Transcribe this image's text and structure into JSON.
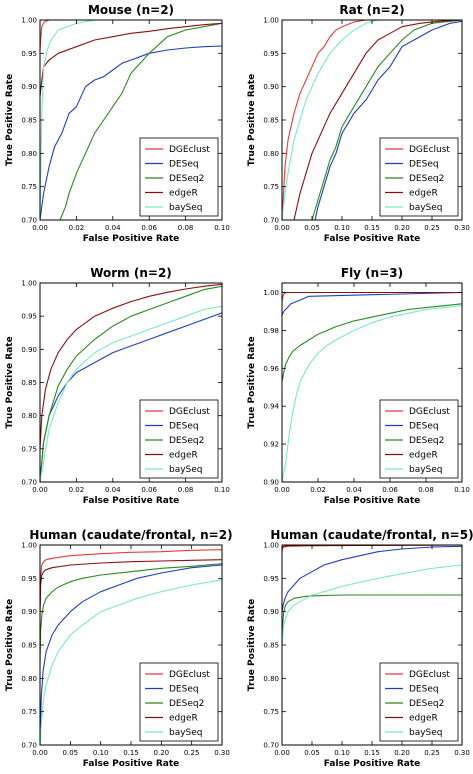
{
  "colors": {
    "DGEclust": "#e83b3b",
    "DESeq": "#1f3fbf",
    "DESeq2": "#2a8a1f",
    "edgeR": "#8b1010",
    "baySeq": "#7ee8c8"
  },
  "chart_data": [
    {
      "type": "line",
      "title": "Mouse (n=2)",
      "xlabel": "False Positive Rate",
      "ylabel": "True Positive Rate",
      "xlim": [
        0,
        0.1
      ],
      "ylim": [
        0.7,
        1.0
      ],
      "xticks": [
        "0.00",
        "0.02",
        "0.04",
        "0.06",
        "0.08",
        "0.10"
      ],
      "yticks": [
        "0.70",
        "0.75",
        "0.80",
        "0.85",
        "0.90",
        "0.95",
        "1.00"
      ],
      "legend": "bottom-right",
      "series": [
        {
          "name": "DGEclust",
          "x": [
            0,
            0.0005,
            0.001,
            0.002,
            0.003,
            0.005,
            0.024
          ],
          "y": [
            0.955,
            0.975,
            0.99,
            0.996,
            0.998,
            1.0,
            1.0
          ]
        },
        {
          "name": "DESeq",
          "x": [
            0,
            0.002,
            0.005,
            0.008,
            0.012,
            0.016,
            0.02,
            0.025,
            0.03,
            0.035,
            0.04,
            0.045,
            0.05,
            0.055,
            0.06,
            0.07,
            0.08,
            0.09,
            0.1
          ],
          "y": [
            0.7,
            0.74,
            0.78,
            0.81,
            0.83,
            0.86,
            0.87,
            0.9,
            0.91,
            0.915,
            0.925,
            0.935,
            0.94,
            0.945,
            0.95,
            0.955,
            0.958,
            0.96,
            0.961
          ]
        },
        {
          "name": "DESeq2",
          "x": [
            0.011,
            0.014,
            0.016,
            0.02,
            0.025,
            0.03,
            0.035,
            0.04,
            0.045,
            0.05,
            0.06,
            0.07,
            0.08,
            0.09,
            0.1
          ],
          "y": [
            0.7,
            0.72,
            0.74,
            0.77,
            0.8,
            0.83,
            0.85,
            0.87,
            0.89,
            0.92,
            0.95,
            0.975,
            0.985,
            0.99,
            0.995
          ]
        },
        {
          "name": "edgeR",
          "x": [
            0,
            0.001,
            0.002,
            0.005,
            0.01,
            0.02,
            0.03,
            0.04,
            0.05,
            0.06,
            0.07,
            0.08,
            0.09,
            0.1
          ],
          "y": [
            0.885,
            0.91,
            0.93,
            0.94,
            0.95,
            0.96,
            0.97,
            0.975,
            0.98,
            0.983,
            0.987,
            0.99,
            0.993,
            0.995
          ]
        },
        {
          "name": "baySeq",
          "x": [
            0,
            0.001,
            0.002,
            0.004,
            0.006,
            0.01,
            0.015,
            0.02,
            0.03,
            0.05,
            0.1
          ],
          "y": [
            0.7,
            0.86,
            0.93,
            0.955,
            0.97,
            0.985,
            0.99,
            0.995,
            1.0,
            1.0,
            1.0
          ]
        }
      ]
    },
    {
      "type": "line",
      "title": "Rat (n=2)",
      "xlabel": "False Positive Rate",
      "ylabel": "True Positive Rate",
      "xlim": [
        0,
        0.3
      ],
      "ylim": [
        0.7,
        1.0
      ],
      "xticks": [
        "0.00",
        "0.05",
        "0.10",
        "0.15",
        "0.20",
        "0.25",
        "0.30"
      ],
      "yticks": [
        "0.70",
        "0.75",
        "0.80",
        "0.85",
        "0.90",
        "0.95",
        "1.00"
      ],
      "legend": "bottom-right",
      "series": [
        {
          "name": "DGEclust",
          "x": [
            0,
            0.005,
            0.01,
            0.02,
            0.03,
            0.04,
            0.05,
            0.06,
            0.07,
            0.08,
            0.09,
            0.1,
            0.12,
            0.14,
            0.19
          ],
          "y": [
            0.7,
            0.78,
            0.82,
            0.86,
            0.89,
            0.91,
            0.93,
            0.95,
            0.96,
            0.975,
            0.985,
            0.99,
            0.997,
            1.0,
            1.0
          ]
        },
        {
          "name": "DESeq",
          "x": [
            0.055,
            0.06,
            0.07,
            0.08,
            0.09,
            0.1,
            0.12,
            0.14,
            0.16,
            0.18,
            0.2,
            0.22,
            0.25,
            0.28,
            0.3
          ],
          "y": [
            0.7,
            0.72,
            0.75,
            0.78,
            0.8,
            0.83,
            0.86,
            0.88,
            0.91,
            0.93,
            0.96,
            0.97,
            0.985,
            0.995,
            0.998
          ]
        },
        {
          "name": "DESeq2",
          "x": [
            0.05,
            0.06,
            0.07,
            0.08,
            0.09,
            0.1,
            0.12,
            0.14,
            0.16,
            0.18,
            0.2,
            0.22,
            0.25,
            0.3
          ],
          "y": [
            0.7,
            0.73,
            0.76,
            0.79,
            0.81,
            0.84,
            0.87,
            0.9,
            0.93,
            0.95,
            0.97,
            0.985,
            0.995,
            1.0
          ]
        },
        {
          "name": "edgeR",
          "x": [
            0.02,
            0.03,
            0.04,
            0.05,
            0.06,
            0.08,
            0.1,
            0.12,
            0.14,
            0.16,
            0.18,
            0.2,
            0.23,
            0.26,
            0.3
          ],
          "y": [
            0.7,
            0.74,
            0.77,
            0.8,
            0.82,
            0.86,
            0.89,
            0.92,
            0.95,
            0.97,
            0.98,
            0.99,
            0.995,
            0.998,
            1.0
          ]
        },
        {
          "name": "baySeq",
          "x": [
            0,
            0.005,
            0.01,
            0.02,
            0.03,
            0.04,
            0.05,
            0.06,
            0.08,
            0.1,
            0.12,
            0.14,
            0.16,
            0.3
          ],
          "y": [
            0.7,
            0.74,
            0.77,
            0.82,
            0.85,
            0.88,
            0.9,
            0.92,
            0.95,
            0.97,
            0.985,
            0.995,
            1.0,
            1.0
          ]
        }
      ]
    },
    {
      "type": "line",
      "title": "Worm (n=2)",
      "xlabel": "False Positive Rate",
      "ylabel": "True Positive Rate",
      "xlim": [
        0,
        0.1
      ],
      "ylim": [
        0.7,
        1.0
      ],
      "xticks": [
        "0.00",
        "0.02",
        "0.04",
        "0.06",
        "0.08",
        "0.10"
      ],
      "yticks": [
        "0.70",
        "0.75",
        "0.80",
        "0.85",
        "0.90",
        "0.95",
        "1.00"
      ],
      "legend": "bottom-right",
      "series": [
        {
          "name": "DGEclust",
          "x": [
            0,
            0.1
          ],
          "y": [
            1.0,
            1.0
          ]
        },
        {
          "name": "DESeq",
          "x": [
            0,
            0.002,
            0.005,
            0.01,
            0.015,
            0.02,
            0.03,
            0.04,
            0.05,
            0.06,
            0.07,
            0.08,
            0.09,
            0.1
          ],
          "y": [
            0.7,
            0.76,
            0.8,
            0.83,
            0.85,
            0.865,
            0.88,
            0.895,
            0.905,
            0.915,
            0.925,
            0.935,
            0.945,
            0.955
          ]
        },
        {
          "name": "DESeq2",
          "x": [
            0,
            0.002,
            0.005,
            0.01,
            0.015,
            0.02,
            0.03,
            0.04,
            0.05,
            0.06,
            0.07,
            0.08,
            0.09,
            0.1
          ],
          "y": [
            0.7,
            0.76,
            0.8,
            0.845,
            0.87,
            0.89,
            0.915,
            0.935,
            0.95,
            0.96,
            0.97,
            0.98,
            0.99,
            0.995
          ]
        },
        {
          "name": "edgeR",
          "x": [
            0,
            0.001,
            0.003,
            0.006,
            0.01,
            0.015,
            0.02,
            0.03,
            0.04,
            0.05,
            0.06,
            0.07,
            0.08,
            0.09,
            0.1
          ],
          "y": [
            0.75,
            0.8,
            0.84,
            0.87,
            0.895,
            0.915,
            0.93,
            0.95,
            0.962,
            0.972,
            0.98,
            0.986,
            0.991,
            0.995,
            0.998
          ]
        },
        {
          "name": "baySeq",
          "x": [
            0,
            0.002,
            0.005,
            0.01,
            0.015,
            0.02,
            0.03,
            0.04,
            0.05,
            0.06,
            0.07,
            0.08,
            0.09,
            0.1
          ],
          "y": [
            0.7,
            0.73,
            0.78,
            0.82,
            0.85,
            0.87,
            0.895,
            0.91,
            0.92,
            0.93,
            0.94,
            0.95,
            0.96,
            0.965
          ]
        }
      ]
    },
    {
      "type": "line",
      "title": "Fly (n=3)",
      "xlabel": "False Positive Rate",
      "ylabel": "True Positive Rate",
      "xlim": [
        0,
        0.1
      ],
      "ylim": [
        0.9,
        1.005
      ],
      "xticks": [
        "0.00",
        "0.02",
        "0.04",
        "0.06",
        "0.08",
        "0.10"
      ],
      "yticks": [
        "0.90",
        "0.92",
        "0.94",
        "0.96",
        "0.98",
        "1.00"
      ],
      "legend": "bottom-right",
      "series": [
        {
          "name": "DGEclust",
          "x": [
            0,
            0.0005,
            0.001,
            0.002,
            0.004,
            0.1
          ],
          "y": [
            0.995,
            0.998,
            0.999,
            1.0,
            1.0,
            1.0
          ]
        },
        {
          "name": "DESeq",
          "x": [
            0,
            0.001,
            0.002,
            0.003,
            0.005,
            0.01,
            0.015,
            0.1
          ],
          "y": [
            0.988,
            0.99,
            0.991,
            0.992,
            0.994,
            0.996,
            0.998,
            1.0
          ]
        },
        {
          "name": "DESeq2",
          "x": [
            0,
            0.001,
            0.002,
            0.004,
            0.006,
            0.01,
            0.015,
            0.02,
            0.03,
            0.04,
            0.05,
            0.06,
            0.07,
            0.08,
            0.09,
            0.1
          ],
          "y": [
            0.953,
            0.958,
            0.962,
            0.966,
            0.969,
            0.972,
            0.975,
            0.978,
            0.982,
            0.985,
            0.987,
            0.989,
            0.991,
            0.992,
            0.993,
            0.994
          ]
        },
        {
          "name": "edgeR",
          "x": [
            0,
            0.1
          ],
          "y": [
            1.0,
            1.0
          ]
        },
        {
          "name": "baySeq",
          "x": [
            0,
            0.002,
            0.004,
            0.006,
            0.008,
            0.01,
            0.015,
            0.02,
            0.025,
            0.03,
            0.04,
            0.05,
            0.06,
            0.07,
            0.08,
            0.09,
            0.1
          ],
          "y": [
            0.9,
            0.91,
            0.925,
            0.937,
            0.946,
            0.953,
            0.962,
            0.968,
            0.972,
            0.975,
            0.98,
            0.984,
            0.987,
            0.989,
            0.991,
            0.992,
            0.993
          ]
        }
      ]
    },
    {
      "type": "line",
      "title": "Human (caudate/frontal, n=2)",
      "xlabel": "False Positive Rate",
      "ylabel": "True Positive Rate",
      "xlim": [
        0,
        0.3
      ],
      "ylim": [
        0.7,
        1.0
      ],
      "xticks": [
        "0.00",
        "0.05",
        "0.10",
        "0.15",
        "0.20",
        "0.25",
        "0.30"
      ],
      "yticks": [
        "0.70",
        "0.75",
        "0.80",
        "0.85",
        "0.90",
        "0.95",
        "1.00"
      ],
      "legend": "bottom-right",
      "series": [
        {
          "name": "DGEclust",
          "x": [
            0,
            0.001,
            0.003,
            0.006,
            0.01,
            0.02,
            0.05,
            0.1,
            0.15,
            0.2,
            0.25,
            0.3
          ],
          "y": [
            0.9,
            0.95,
            0.97,
            0.975,
            0.978,
            0.98,
            0.984,
            0.987,
            0.989,
            0.99,
            0.992,
            0.993
          ]
        },
        {
          "name": "DESeq",
          "x": [
            0,
            0.002,
            0.005,
            0.01,
            0.02,
            0.03,
            0.05,
            0.07,
            0.1,
            0.13,
            0.16,
            0.2,
            0.25,
            0.3
          ],
          "y": [
            0.7,
            0.77,
            0.81,
            0.84,
            0.865,
            0.88,
            0.9,
            0.915,
            0.93,
            0.94,
            0.95,
            0.958,
            0.966,
            0.97
          ]
        },
        {
          "name": "DESeq2",
          "x": [
            0,
            0.001,
            0.003,
            0.006,
            0.01,
            0.02,
            0.03,
            0.05,
            0.07,
            0.1,
            0.15,
            0.2,
            0.25,
            0.3
          ],
          "y": [
            0.82,
            0.87,
            0.895,
            0.91,
            0.92,
            0.93,
            0.937,
            0.945,
            0.95,
            0.955,
            0.96,
            0.965,
            0.968,
            0.972
          ]
        },
        {
          "name": "edgeR",
          "x": [
            0,
            0.001,
            0.003,
            0.006,
            0.01,
            0.02,
            0.05,
            0.1,
            0.15,
            0.2,
            0.25,
            0.3
          ],
          "y": [
            0.9,
            0.94,
            0.955,
            0.96,
            0.963,
            0.966,
            0.97,
            0.973,
            0.975,
            0.976,
            0.977,
            0.978
          ]
        },
        {
          "name": "baySeq",
          "x": [
            0,
            0.003,
            0.006,
            0.01,
            0.02,
            0.03,
            0.05,
            0.07,
            0.1,
            0.13,
            0.16,
            0.2,
            0.25,
            0.3
          ],
          "y": [
            0.7,
            0.74,
            0.77,
            0.79,
            0.82,
            0.84,
            0.865,
            0.88,
            0.9,
            0.91,
            0.92,
            0.93,
            0.94,
            0.948
          ]
        }
      ]
    },
    {
      "type": "line",
      "title": "Human (caudate/frontal, n=5)",
      "xlabel": "False Positive Rate",
      "ylabel": "True Positive Rate",
      "xlim": [
        0,
        0.3
      ],
      "ylim": [
        0.7,
        1.0
      ],
      "xticks": [
        "0.00",
        "0.05",
        "0.10",
        "0.15",
        "0.20",
        "0.25",
        "0.30"
      ],
      "yticks": [
        "0.70",
        "0.75",
        "0.80",
        "0.85",
        "0.90",
        "0.95",
        "1.00"
      ],
      "legend": "bottom-right",
      "series": [
        {
          "name": "DGEclust",
          "x": [
            0,
            0.001,
            0.003,
            0.01,
            0.05,
            0.3
          ],
          "y": [
            0.99,
            0.995,
            0.997,
            0.998,
            0.999,
            1.0
          ]
        },
        {
          "name": "DESeq",
          "x": [
            0,
            0.002,
            0.005,
            0.01,
            0.02,
            0.03,
            0.05,
            0.07,
            0.1,
            0.13,
            0.16,
            0.2,
            0.25,
            0.3
          ],
          "y": [
            0.9,
            0.91,
            0.92,
            0.93,
            0.94,
            0.95,
            0.96,
            0.97,
            0.978,
            0.984,
            0.99,
            0.994,
            0.997,
            0.998
          ]
        },
        {
          "name": "DESeq2",
          "x": [
            0,
            0.001,
            0.003,
            0.006,
            0.01,
            0.02,
            0.04,
            0.06,
            0.1,
            0.2,
            0.3
          ],
          "y": [
            0.85,
            0.88,
            0.9,
            0.91,
            0.915,
            0.92,
            0.923,
            0.924,
            0.925,
            0.925,
            0.925
          ]
        },
        {
          "name": "edgeR",
          "x": [
            0,
            0.001,
            0.003,
            0.01,
            0.3
          ],
          "y": [
            0.995,
            0.997,
            0.998,
            0.999,
            1.0
          ]
        },
        {
          "name": "baySeq",
          "x": [
            0,
            0.003,
            0.006,
            0.01,
            0.02,
            0.03,
            0.05,
            0.07,
            0.1,
            0.13,
            0.16,
            0.2,
            0.25,
            0.3
          ],
          "y": [
            0.85,
            0.88,
            0.89,
            0.9,
            0.91,
            0.915,
            0.925,
            0.93,
            0.938,
            0.944,
            0.95,
            0.957,
            0.965,
            0.97
          ]
        }
      ]
    }
  ]
}
